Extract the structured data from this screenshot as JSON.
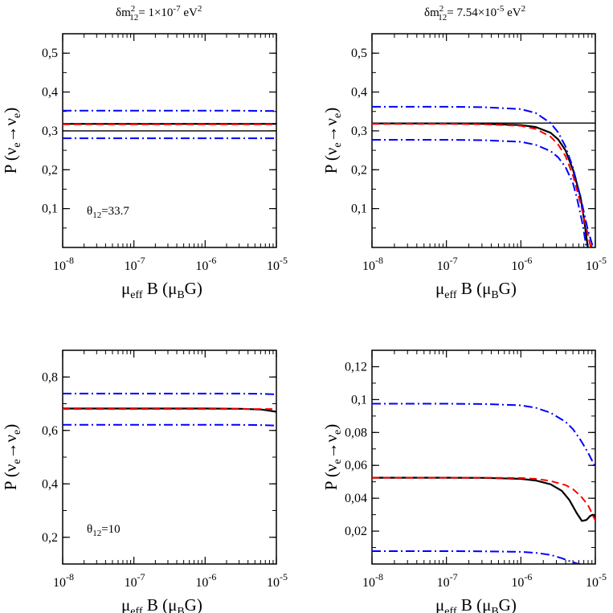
{
  "titles": {
    "left": {
      "prefix": "δm",
      "sup": "2",
      "sub": "12",
      "suffix": "= 1×10",
      "exp": "-7",
      "unit": " eV",
      "unit_sup": "2"
    },
    "right": {
      "prefix": "δm",
      "sup": "2",
      "sub": "12",
      "suffix": "= 7.54×10",
      "exp": "-5",
      "unit": " eV",
      "unit_sup": "2"
    }
  },
  "axis_labels": {
    "xlabel": {
      "mu": "μ",
      "sub": "eff",
      "mid": " B (μ",
      "sub2": "B",
      "end": "G)"
    },
    "ylabel": {
      "start": "P (ν",
      "sub": "e",
      "arrow": "→ν",
      "sub2": "e",
      "end": ")"
    }
  },
  "colors": {
    "black": "#000000",
    "red": "#ff0000",
    "blue": "#0000ff"
  },
  "chart_data": [
    {
      "type": "line",
      "panel": "top-left",
      "xscale": "log",
      "xlim": [
        1e-08,
        1e-05
      ],
      "x_ticks": [
        {
          "base": "10",
          "exp": "-8"
        },
        {
          "base": "10",
          "exp": "-7"
        },
        {
          "base": "10",
          "exp": "-6"
        },
        {
          "base": "10",
          "exp": "-5"
        }
      ],
      "ylim": [
        0,
        0.55
      ],
      "y_ticks": [
        {
          "value": 0.1,
          "label": "0,1"
        },
        {
          "value": 0.2,
          "label": "0,2"
        },
        {
          "value": 0.3,
          "label": "0,3"
        },
        {
          "value": 0.4,
          "label": "0,4"
        },
        {
          "value": 0.5,
          "label": "0,5"
        }
      ],
      "hline": 0.3,
      "annotation": {
        "sym": "θ",
        "sub": "12",
        "val": "=33.7"
      },
      "series": [
        {
          "name": "black solid",
          "color": "black",
          "style": "solid",
          "x_log": [
            -8,
            -7,
            -6,
            -5.5,
            -5
          ],
          "y": [
            0.318,
            0.318,
            0.318,
            0.318,
            0.318
          ]
        },
        {
          "name": "red dashed",
          "color": "red",
          "style": "dashed",
          "x_log": [
            -8,
            -7,
            -6,
            -5.5,
            -5
          ],
          "y": [
            0.317,
            0.317,
            0.317,
            0.317,
            0.317
          ]
        },
        {
          "name": "blue dash-dot upper",
          "color": "blue",
          "style": "dashdot",
          "x_log": [
            -8,
            -7,
            -6,
            -5.5,
            -5
          ],
          "y": [
            0.352,
            0.352,
            0.352,
            0.352,
            0.351
          ]
        },
        {
          "name": "blue dash-dot lower",
          "color": "blue",
          "style": "dashdot",
          "x_log": [
            -8,
            -7,
            -6,
            -5.5,
            -5
          ],
          "y": [
            0.281,
            0.281,
            0.281,
            0.281,
            0.281
          ]
        }
      ]
    },
    {
      "type": "line",
      "panel": "top-right",
      "xscale": "log",
      "xlim": [
        1e-08,
        1e-05
      ],
      "x_ticks": [
        {
          "base": "10",
          "exp": "-8"
        },
        {
          "base": "10",
          "exp": "-7"
        },
        {
          "base": "10",
          "exp": "-6"
        },
        {
          "base": "10",
          "exp": "-5"
        }
      ],
      "ylim": [
        0,
        0.55
      ],
      "y_ticks": [
        {
          "value": 0.1,
          "label": "0,1"
        },
        {
          "value": 0.2,
          "label": "0,2"
        },
        {
          "value": 0.3,
          "label": "0,3"
        },
        {
          "value": 0.4,
          "label": "0,4"
        },
        {
          "value": 0.5,
          "label": "0,5"
        }
      ],
      "hline": 0.32,
      "series": [
        {
          "name": "black solid",
          "color": "black",
          "style": "solid",
          "x_log": [
            -8,
            -7,
            -6.5,
            -6,
            -5.8,
            -5.6,
            -5.5,
            -5.4,
            -5.3,
            -5.2,
            -5.15,
            -5.1
          ],
          "y": [
            0.319,
            0.319,
            0.318,
            0.315,
            0.31,
            0.295,
            0.278,
            0.25,
            0.2,
            0.13,
            0.07,
            0.0
          ]
        },
        {
          "name": "red dashed",
          "color": "red",
          "style": "dashed",
          "x_log": [
            -8,
            -7,
            -6.5,
            -6,
            -5.8,
            -5.6,
            -5.5,
            -5.4,
            -5.3,
            -5.2,
            -5.12,
            -5.06
          ],
          "y": [
            0.318,
            0.318,
            0.317,
            0.313,
            0.305,
            0.285,
            0.265,
            0.235,
            0.185,
            0.115,
            0.05,
            0.0
          ]
        },
        {
          "name": "blue dash-dot upper",
          "color": "blue",
          "style": "dashdot",
          "x_log": [
            -8,
            -7,
            -6.5,
            -6,
            -5.8,
            -5.6,
            -5.5,
            -5.4,
            -5.3,
            -5.2,
            -5.1,
            -5.03
          ],
          "y": [
            0.362,
            0.362,
            0.361,
            0.356,
            0.346,
            0.32,
            0.296,
            0.26,
            0.205,
            0.13,
            0.045,
            0.0
          ]
        },
        {
          "name": "blue dash-dot lower",
          "color": "blue",
          "style": "dashdot",
          "x_log": [
            -8,
            -7,
            -6.5,
            -6,
            -5.8,
            -5.6,
            -5.5,
            -5.4,
            -5.3,
            -5.25,
            -5.17,
            -5.12
          ],
          "y": [
            0.277,
            0.277,
            0.276,
            0.272,
            0.264,
            0.248,
            0.232,
            0.207,
            0.165,
            0.13,
            0.06,
            0.0
          ]
        }
      ]
    },
    {
      "type": "line",
      "panel": "bottom-left",
      "xscale": "log",
      "xlim": [
        1e-08,
        1e-05
      ],
      "x_ticks": [
        {
          "base": "10",
          "exp": "-8"
        },
        {
          "base": "10",
          "exp": "-7"
        },
        {
          "base": "10",
          "exp": "-6"
        },
        {
          "base": "10",
          "exp": "-5"
        }
      ],
      "ylim": [
        0.1,
        0.9
      ],
      "y_ticks": [
        {
          "value": 0.2,
          "label": "0,2"
        },
        {
          "value": 0.4,
          "label": "0,4"
        },
        {
          "value": 0.6,
          "label": "0,6"
        },
        {
          "value": 0.8,
          "label": "0,8"
        }
      ],
      "annotation": {
        "sym": "θ",
        "sub": "12",
        "val": "=10"
      },
      "series": [
        {
          "name": "black solid",
          "color": "black",
          "style": "solid",
          "x_log": [
            -8,
            -7,
            -6,
            -5.5,
            -5.2,
            -5
          ],
          "y": [
            0.682,
            0.682,
            0.682,
            0.681,
            0.678,
            0.67
          ]
        },
        {
          "name": "red dashed",
          "color": "red",
          "style": "dashed",
          "x_log": [
            -8,
            -7,
            -6,
            -5.5,
            -5.2,
            -5
          ],
          "y": [
            0.68,
            0.68,
            0.68,
            0.68,
            0.68,
            0.68
          ]
        },
        {
          "name": "blue dash-dot upper",
          "color": "blue",
          "style": "dashdot",
          "x_log": [
            -8,
            -7,
            -6,
            -5.5,
            -5.2,
            -5
          ],
          "y": [
            0.738,
            0.738,
            0.738,
            0.738,
            0.737,
            0.735
          ]
        },
        {
          "name": "blue dash-dot lower",
          "color": "blue",
          "style": "dashdot",
          "x_log": [
            -8,
            -7,
            -6,
            -5.5,
            -5.2,
            -5
          ],
          "y": [
            0.621,
            0.621,
            0.621,
            0.621,
            0.62,
            0.618
          ]
        }
      ]
    },
    {
      "type": "line",
      "panel": "bottom-right",
      "xscale": "log",
      "xlim": [
        1e-08,
        1e-05
      ],
      "x_ticks": [
        {
          "base": "10",
          "exp": "-8"
        },
        {
          "base": "10",
          "exp": "-7"
        },
        {
          "base": "10",
          "exp": "-6"
        },
        {
          "base": "10",
          "exp": "-5"
        }
      ],
      "ylim": [
        0,
        0.13
      ],
      "y_ticks": [
        {
          "value": 0.02,
          "label": "0,02"
        },
        {
          "value": 0.04,
          "label": "0,04"
        },
        {
          "value": 0.06,
          "label": "0,06"
        },
        {
          "value": 0.08,
          "label": "0,08"
        },
        {
          "value": 0.1,
          "label": "0,1"
        },
        {
          "value": 0.12,
          "label": "0,12"
        }
      ],
      "series": [
        {
          "name": "black solid",
          "color": "black",
          "style": "solid",
          "x_log": [
            -8,
            -7,
            -6.5,
            -6,
            -5.8,
            -5.6,
            -5.45,
            -5.35,
            -5.25,
            -5.18,
            -5.12,
            -5.07,
            -5.03,
            -5
          ],
          "y": [
            0.0525,
            0.0525,
            0.0524,
            0.0518,
            0.0508,
            0.0485,
            0.0445,
            0.039,
            0.031,
            0.0262,
            0.0268,
            0.0292,
            0.03,
            0.0285
          ]
        },
        {
          "name": "red dashed",
          "color": "red",
          "style": "dashed",
          "x_log": [
            -8,
            -7,
            -6.5,
            -6,
            -5.8,
            -5.6,
            -5.4,
            -5.3,
            -5.2,
            -5.1,
            -5
          ],
          "y": [
            0.0525,
            0.0525,
            0.0525,
            0.0523,
            0.0518,
            0.0505,
            0.048,
            0.0455,
            0.0415,
            0.036,
            0.0265
          ]
        },
        {
          "name": "blue dash-dot upper",
          "color": "blue",
          "style": "dashdot",
          "x_log": [
            -8,
            -7,
            -6.5,
            -6,
            -5.8,
            -5.6,
            -5.4,
            -5.3,
            -5.2,
            -5.1,
            -5
          ],
          "y": [
            0.0975,
            0.0975,
            0.0973,
            0.0965,
            0.095,
            0.092,
            0.0865,
            0.082,
            0.0755,
            0.068,
            0.059
          ]
        },
        {
          "name": "blue dash-dot lower",
          "color": "blue",
          "style": "dashdot",
          "x_log": [
            -8,
            -7,
            -6.5,
            -6,
            -5.8,
            -5.6,
            -5.45,
            -5.35,
            -5.25,
            -5.2
          ],
          "y": [
            0.0078,
            0.0078,
            0.0077,
            0.0074,
            0.0068,
            0.0055,
            0.0035,
            0.0018,
            0.0004,
            0.0
          ]
        }
      ]
    }
  ]
}
